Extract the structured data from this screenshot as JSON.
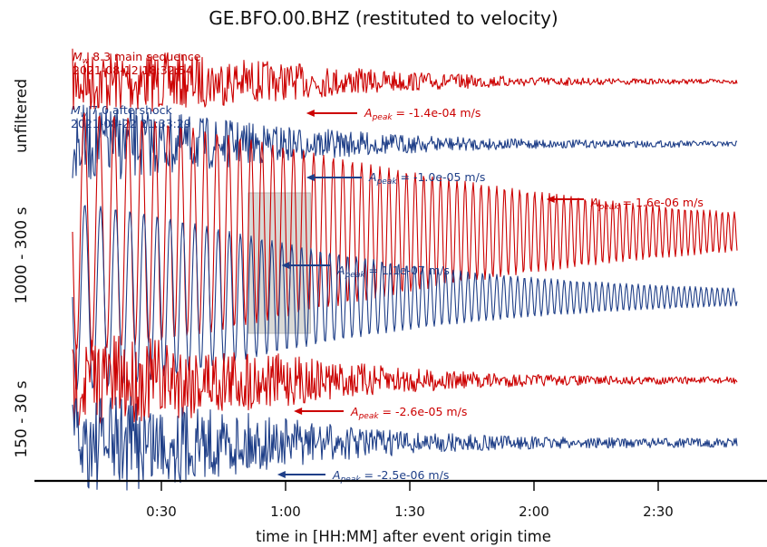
{
  "title": "GE.BFO.00.BHZ (restituted to velocity)",
  "xlabel": "time in [HH:MM] after event origin time",
  "colors": {
    "mainshock": "#cc0000",
    "aftershock": "#1f3f88",
    "window": "#d9d9d6"
  },
  "events": {
    "main": {
      "mag_prefix": "M",
      "mag_sub": "w",
      "mag_text": " 8.3 main sequence",
      "time": "2021-08-12 18:32:54"
    },
    "after": {
      "mag_prefix": "M",
      "mag_sub": "w",
      "mag_text": " 7.0 aftershock",
      "time": "2021-08-22 21:33:29"
    }
  },
  "chart_data": {
    "type": "line",
    "title": "GE.BFO.00.BHZ (restituted to velocity)",
    "xlabel": "time in [HH:MM] after event origin time",
    "xticks": [
      "0:30",
      "1:00",
      "1:30",
      "2:00",
      "2:30"
    ],
    "xtick_minutes": [
      30,
      60,
      90,
      120,
      150
    ],
    "xlim_minutes": [
      8,
      173
    ],
    "highlight_window_minutes": [
      51,
      66
    ],
    "panels": [
      {
        "label": "unfiltered",
        "traces": [
          {
            "event": "main",
            "peak_label": "A",
            "peak_sub": "peak",
            "peak_value": " = -1.4e-04 m/s",
            "peak_minute": 65
          },
          {
            "event": "after",
            "peak_label": "A",
            "peak_sub": "peak",
            "peak_value": " = -1.0e-05 m/s",
            "peak_minute": 65
          }
        ]
      },
      {
        "label": "1000 - 300 s",
        "traces": [
          {
            "event": "main",
            "peak_label": "A",
            "peak_sub": "peak",
            "peak_value": " = 1.6e-06 m/s",
            "peak_minute": 123
          },
          {
            "event": "after",
            "peak_label": "A",
            "peak_sub": "peak",
            "peak_value": " = 1.1e-07 m/s",
            "peak_minute": 59
          }
        ]
      },
      {
        "label": "150 - 30 s",
        "traces": [
          {
            "event": "main",
            "peak_label": "A",
            "peak_sub": "peak",
            "peak_value": " = -2.6e-05 m/s",
            "peak_minute": 62
          },
          {
            "event": "after",
            "peak_label": "A",
            "peak_sub": "peak",
            "peak_value": " = -2.5e-06 m/s",
            "peak_minute": 58
          }
        ]
      }
    ]
  }
}
